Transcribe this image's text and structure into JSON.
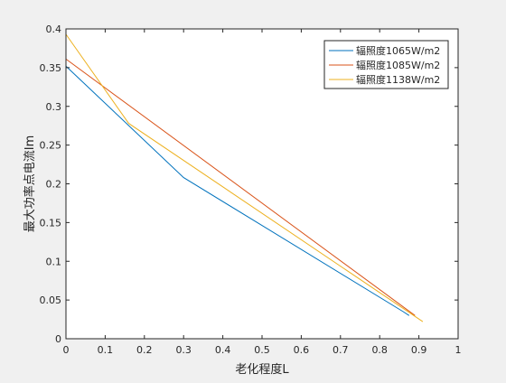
{
  "chart_data": {
    "type": "line",
    "title": "",
    "xlabel": "老化程度L",
    "ylabel": "最大功率点电流Im",
    "xlim": [
      0,
      1
    ],
    "ylim": [
      0,
      0.4
    ],
    "xticks": [
      0,
      0.1,
      0.2,
      0.3,
      0.4,
      0.5,
      0.6,
      0.7,
      0.8,
      0.9,
      1
    ],
    "xtick_labels": [
      "0",
      "0.1",
      "0.2",
      "0.3",
      "0.4",
      "0.5",
      "0.6",
      "0.7",
      "0.8",
      "0.9",
      "1"
    ],
    "yticks": [
      0,
      0.05,
      0.1,
      0.15,
      0.2,
      0.25,
      0.3,
      0.35,
      0.4
    ],
    "ytick_labels": [
      "0",
      "0.05",
      "0.1",
      "0.15",
      "0.2",
      "0.25",
      "0.3",
      "0.35",
      "0.4"
    ],
    "grid": false,
    "legend_position": "top-right",
    "series": [
      {
        "name": "辐照度1065W/m2",
        "color": "#0072bd",
        "x": [
          0,
          0.3,
          0.86,
          0.875
        ],
        "y": [
          0.352,
          0.208,
          0.035,
          0.03
        ]
      },
      {
        "name": "辐照度1085W/m2",
        "color": "#d95319",
        "x": [
          0,
          0.89
        ],
        "y": [
          0.361,
          0.03
        ]
      },
      {
        "name": "辐照度1138W/m2",
        "color": "#edb120",
        "x": [
          0,
          0.16,
          0.91
        ],
        "y": [
          0.393,
          0.278,
          0.022
        ]
      }
    ]
  }
}
